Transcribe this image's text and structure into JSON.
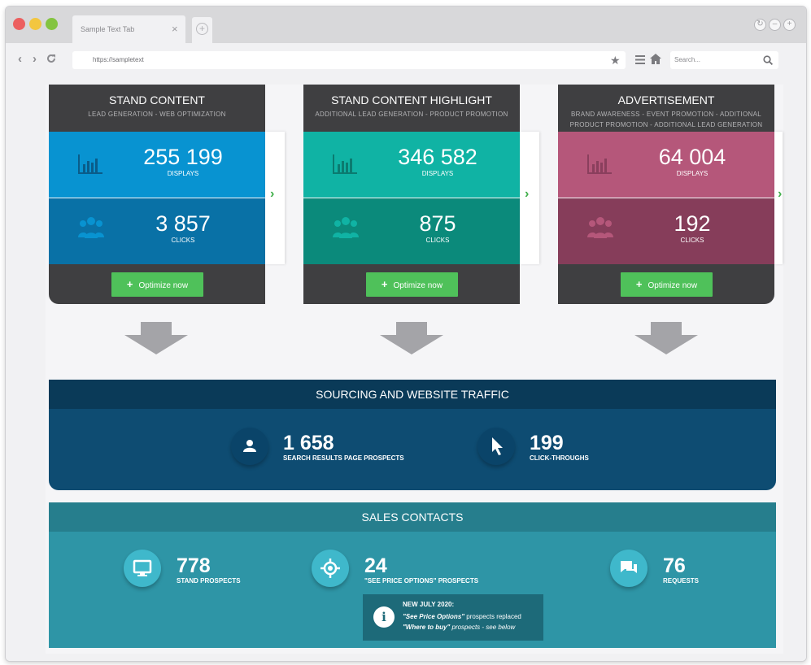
{
  "browser": {
    "tab_title": "Sample Text Tab",
    "tab_close": "×",
    "new_tab": "+",
    "url": "https://sampletext",
    "search_placeholder": "Search...",
    "traffic_colors": [
      "#ec5f5f",
      "#f3c640",
      "#84c441"
    ]
  },
  "cards": [
    {
      "title": "STAND CONTENT",
      "subtitle": "LEAD GENERATION - WEB OPTIMIZATION",
      "displays": "255 199",
      "displays_label": "DISPLAYS",
      "clicks": "3 857",
      "clicks_label": "CLICKS",
      "button": "Optimize now",
      "colors": {
        "top": "#0893d1",
        "bottom": "#0971a6",
        "icon": "#0a5c89"
      }
    },
    {
      "title": "STAND CONTENT HIGHLIGHT",
      "subtitle": "ADDITIONAL LEAD GENERATION - PRODUCT PROMOTION",
      "displays": "346 582",
      "displays_label": "DISPLAYS",
      "clicks": "875",
      "clicks_label": "CLICKS",
      "button": "Optimize now",
      "colors": {
        "top": "#10b3a4",
        "bottom": "#0b8a7b",
        "icon": "#0b7b70"
      }
    },
    {
      "title": "ADVERTISEMENT",
      "subtitle": "BRAND AWARENESS - EVENT PROMOTION - ADDITIONAL PRODUCT PROMOTION - ADDITIONAL LEAD GENERATION",
      "displays": "64 004",
      "displays_label": "DISPLAYS",
      "clicks": "192",
      "clicks_label": "CLICKS",
      "button": "Optimize now",
      "colors": {
        "top": "#b5577a",
        "bottom": "#863d5a",
        "icon": "#8a3f5d"
      }
    }
  ],
  "sourcing": {
    "title": "SOURCING AND WEBSITE TRAFFIC",
    "prospects": "1 658",
    "prospects_label": "SEARCH RESULTS PAGE PROSPECTS",
    "clicks": "199",
    "clicks_label": "CLICK-THROUGHS"
  },
  "sales": {
    "title": "SALES CONTACTS",
    "stand": "778",
    "stand_label": "STAND PROSPECTS",
    "price": "24",
    "price_label": "\"SEE PRICE OPTIONS\" PROSPECTS",
    "requests": "76",
    "requests_label": "REQUESTS",
    "note_title": "NEW JULY 2020:",
    "note_line1_em": "\"See Price Options\"",
    "note_line1_rest": " prospects replaced",
    "note_line2_em": "\"Where to buy\"",
    "note_line2_rest": " prospects - see below"
  }
}
